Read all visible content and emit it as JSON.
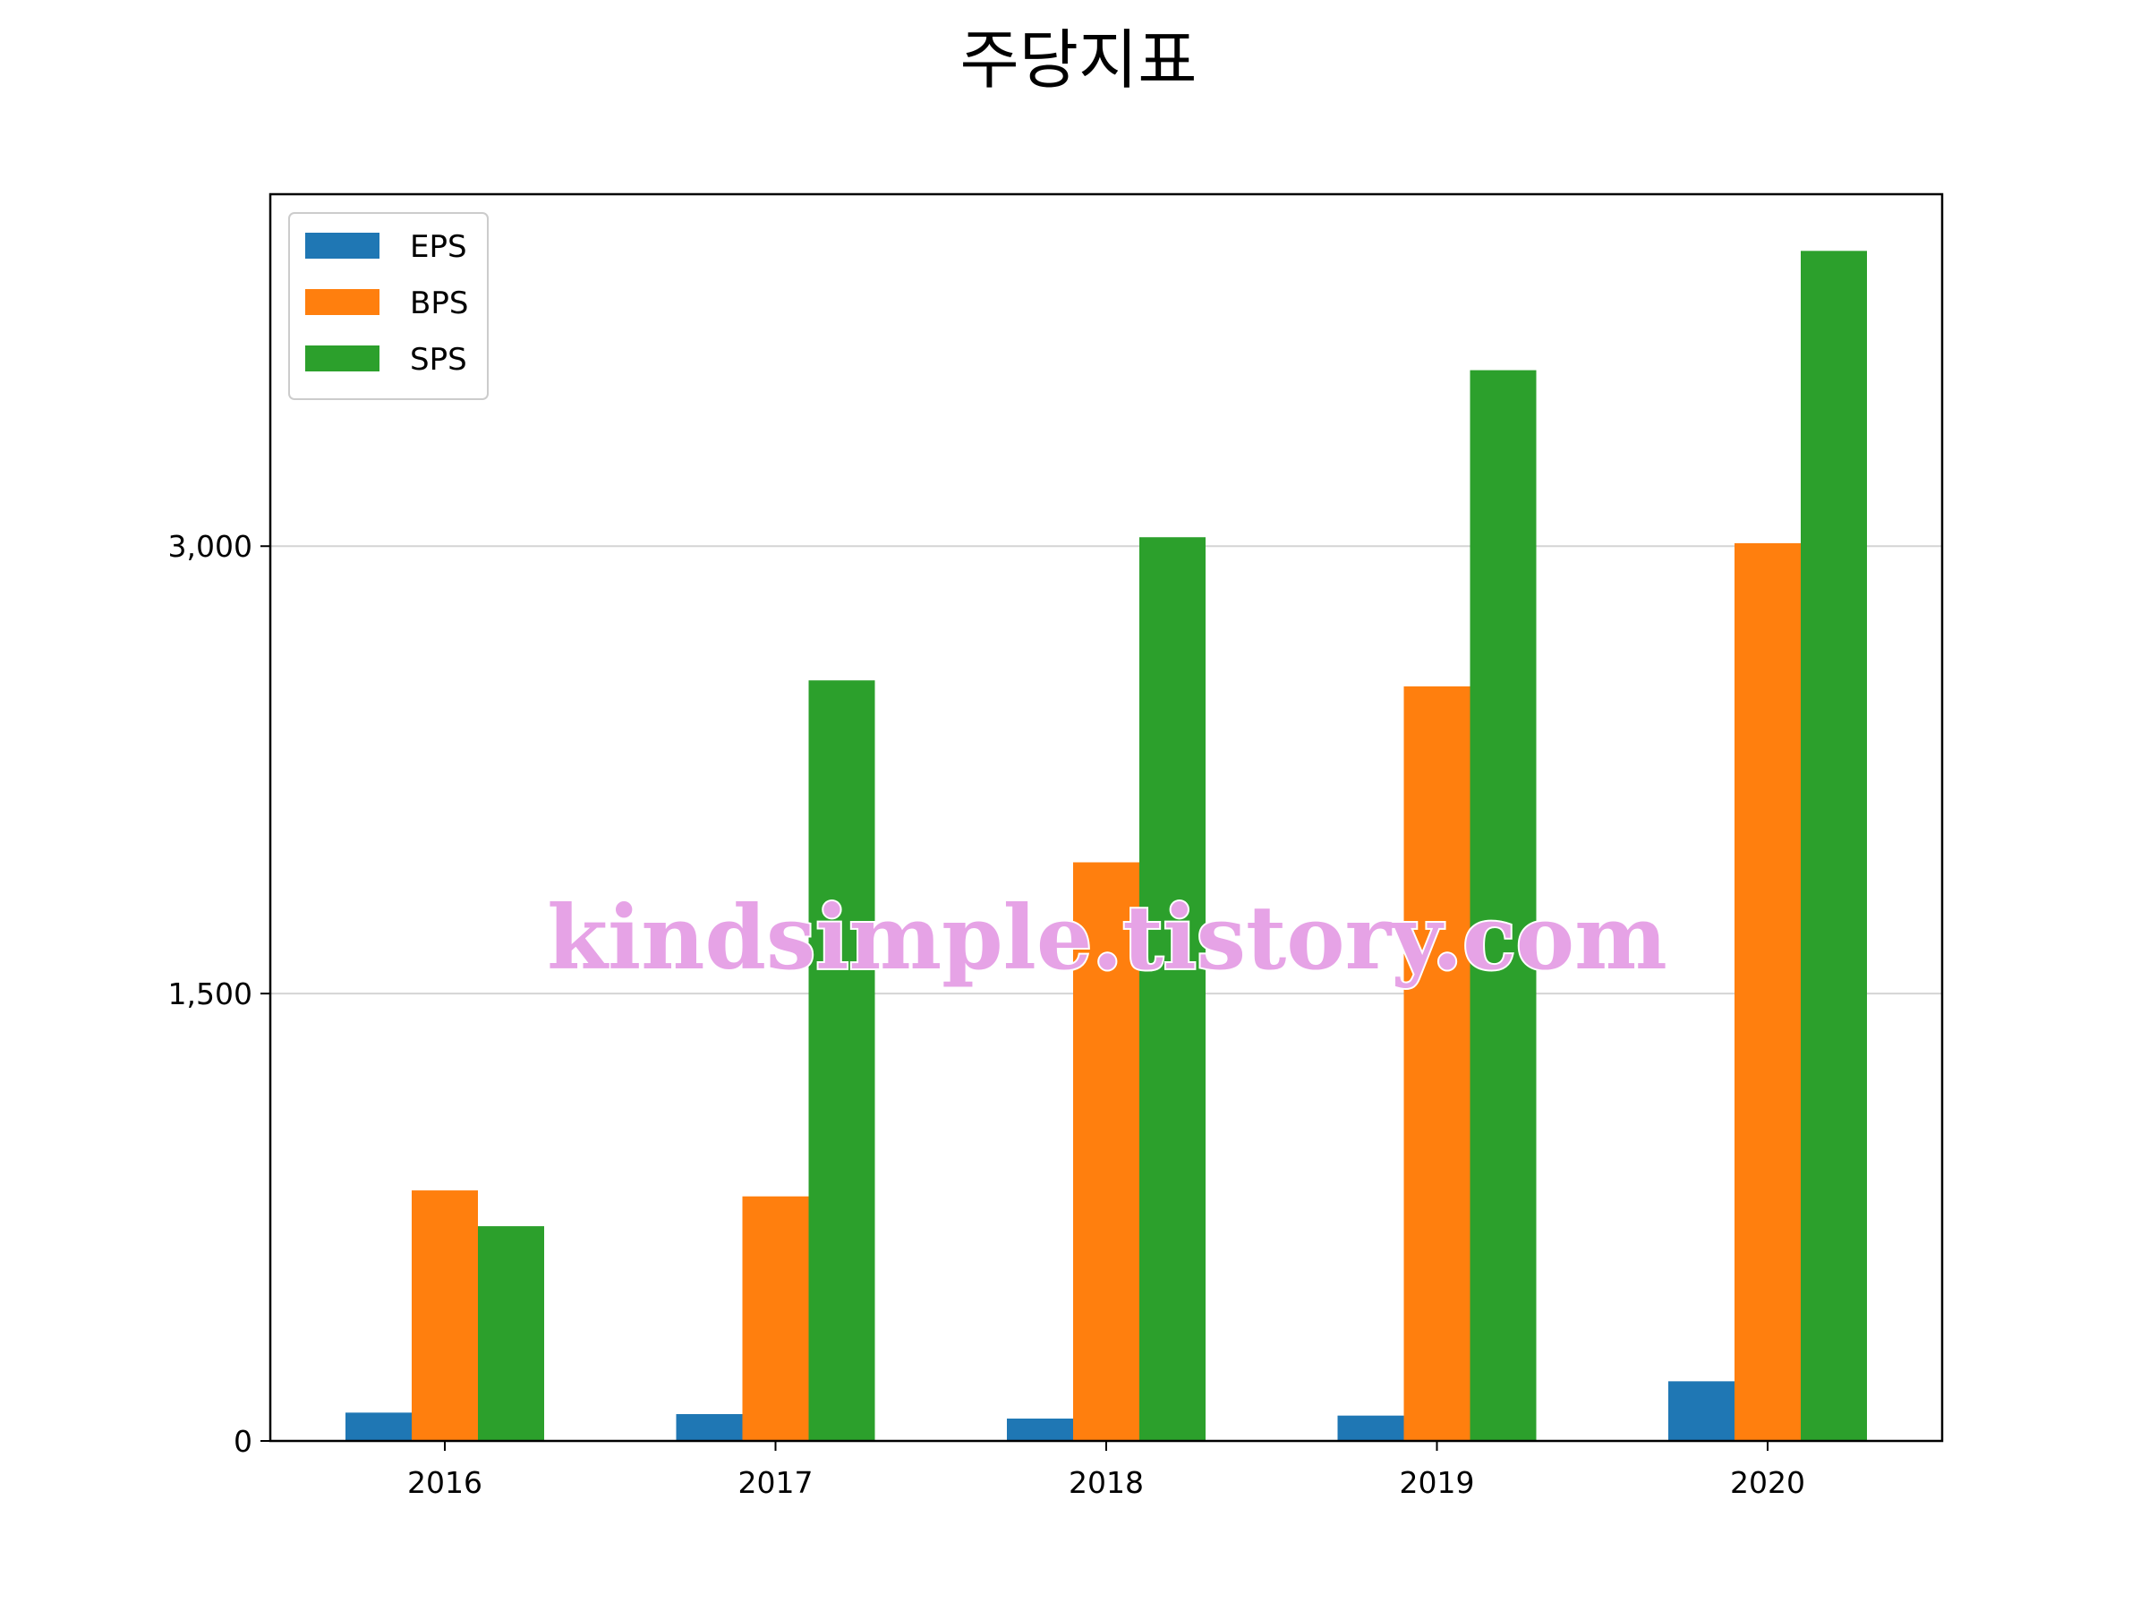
{
  "chart_data": {
    "type": "bar",
    "title": "주당지표",
    "xlabel": "",
    "ylabel": "",
    "categories": [
      "2016",
      "2017",
      "2018",
      "2019",
      "2020"
    ],
    "series": [
      {
        "name": "EPS",
        "color": "#1f77b4",
        "values": [
          95,
          90,
          75,
          85,
          200
        ]
      },
      {
        "name": "BPS",
        "color": "#ff7f0e",
        "values": [
          840,
          820,
          1940,
          2530,
          3010
        ]
      },
      {
        "name": "SPS",
        "color": "#2ca02c",
        "values": [
          720,
          2550,
          3030,
          3590,
          3990
        ]
      }
    ],
    "ylim": [
      0,
      4180
    ],
    "yticks": [
      {
        "value": 0,
        "label": "0"
      },
      {
        "value": 1500,
        "label": "1,500"
      },
      {
        "value": 3000,
        "label": "3,000"
      }
    ],
    "grid": "horizontal",
    "legend_position": "top-left",
    "watermark": "kindsimple.tistory.com"
  }
}
